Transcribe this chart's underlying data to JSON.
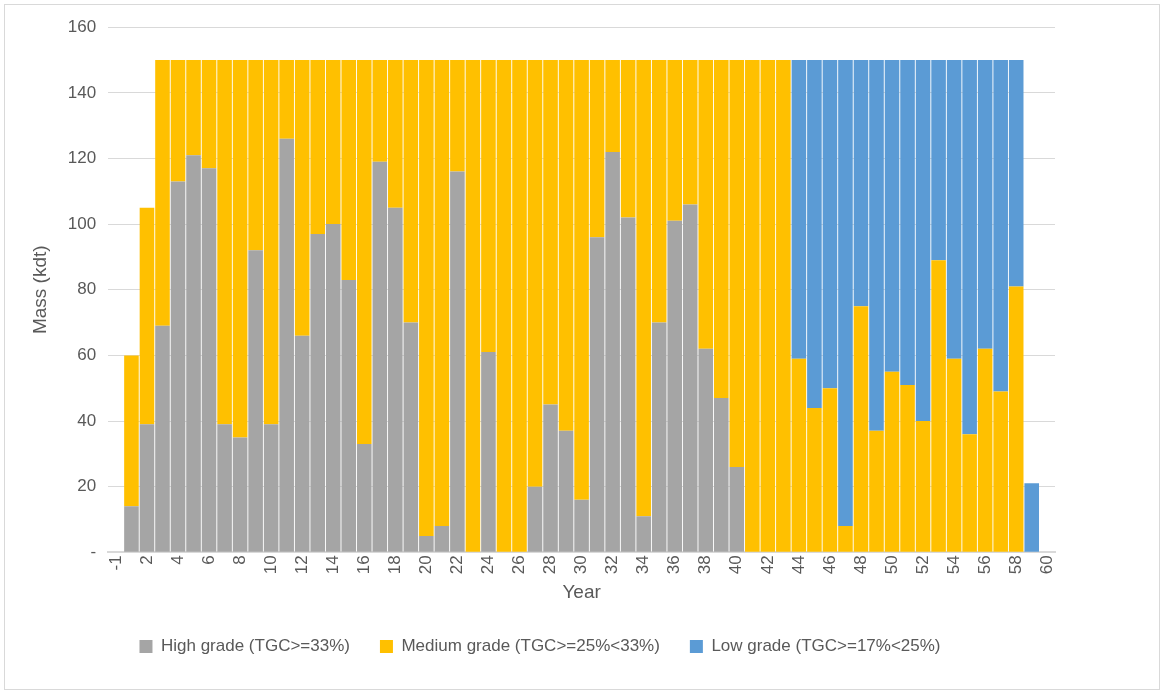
{
  "chart_data": {
    "type": "bar",
    "stacked": true,
    "xlabel": "Year",
    "ylabel": "Mass (kdt)",
    "categories": [
      "-1",
      null,
      "2",
      null,
      "4",
      null,
      "6",
      null,
      "8",
      null,
      "10",
      null,
      "12",
      null,
      "14",
      null,
      "16",
      null,
      "18",
      null,
      "20",
      null,
      "22",
      null,
      "24",
      null,
      "26",
      null,
      "28",
      null,
      "30",
      null,
      "32",
      null,
      "34",
      null,
      "36",
      null,
      "38",
      null,
      "40",
      null,
      "42",
      null,
      "44",
      null,
      "46",
      null,
      "48",
      null,
      "50",
      null,
      "52",
      null,
      "54",
      null,
      "56",
      null,
      "58",
      null,
      "60"
    ],
    "series": [
      {
        "name": "High grade (TGC>=33%)",
        "color": "#a5a5a5",
        "values": [
          0,
          14,
          39,
          69,
          113,
          121,
          117,
          39,
          35,
          92,
          39,
          126,
          66,
          97,
          100,
          83,
          33,
          119,
          105,
          70,
          5,
          8,
          116,
          0,
          61,
          0,
          0,
          20,
          45,
          37,
          16,
          96,
          122,
          102,
          11,
          70,
          101,
          106,
          62,
          47,
          26,
          0,
          0,
          0,
          0,
          0,
          0,
          0,
          0,
          0,
          0,
          0,
          0,
          0,
          0,
          0,
          0,
          0,
          0,
          0,
          0
        ]
      },
      {
        "name": "Medium grade (TGC>=25%<33%)",
        "color": "#ffc000",
        "values": [
          0,
          46,
          66,
          81,
          37,
          29,
          33,
          111,
          115,
          58,
          111,
          24,
          84,
          53,
          50,
          67,
          117,
          31,
          45,
          80,
          145,
          142,
          34,
          150,
          89,
          150,
          150,
          130,
          105,
          113,
          134,
          54,
          28,
          48,
          139,
          80,
          49,
          44,
          88,
          103,
          124,
          150,
          150,
          150,
          59,
          44,
          50,
          8,
          75,
          37,
          55,
          51,
          40,
          89,
          59,
          36,
          62,
          49,
          81,
          0,
          0
        ]
      },
      {
        "name": "Low grade (TGC>=17%<25%)",
        "color": "#5b9bd5",
        "values": [
          0,
          0,
          0,
          0,
          0,
          0,
          0,
          0,
          0,
          0,
          0,
          0,
          0,
          0,
          0,
          0,
          0,
          0,
          0,
          0,
          0,
          0,
          0,
          0,
          0,
          0,
          0,
          0,
          0,
          0,
          0,
          0,
          0,
          0,
          0,
          0,
          0,
          0,
          0,
          0,
          0,
          0,
          0,
          0,
          91,
          106,
          100,
          142,
          75,
          113,
          95,
          99,
          110,
          61,
          91,
          114,
          88,
          101,
          69,
          21,
          0
        ]
      }
    ],
    "ylim": [
      0,
      160
    ],
    "yticks": [
      {
        "value": 0,
        "label": "-"
      },
      20,
      40,
      60,
      80,
      100,
      120,
      140,
      160
    ],
    "grid": "y",
    "legend": "bottom"
  }
}
